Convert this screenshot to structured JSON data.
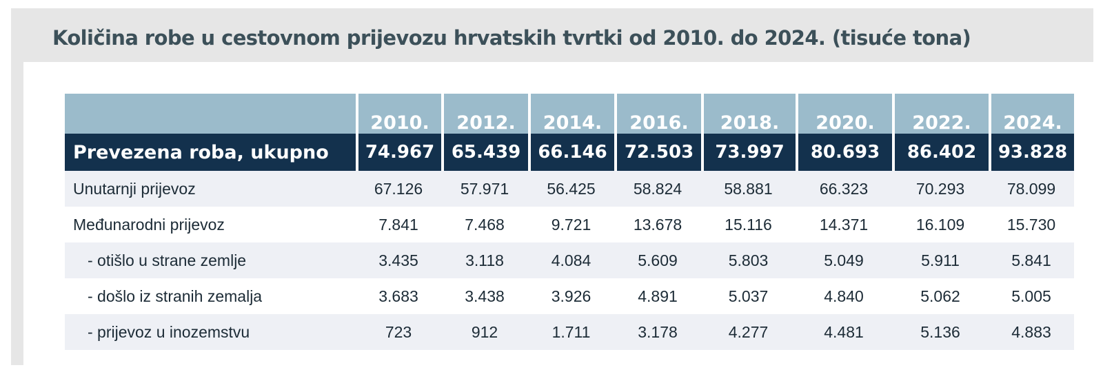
{
  "chart_data": {
    "type": "table",
    "title": "Količina robe u cestovnom prijevozu hrvatskih tvrtki od 2010. do 2024. (tisuće tona)",
    "columns": [
      "2010.",
      "2012.",
      "2014.",
      "2016.",
      "2018.",
      "2020.",
      "2022.",
      "2024."
    ],
    "total": {
      "label": "Prevezena roba, ukupno",
      "values": [
        "74.967",
        "65.439",
        "66.146",
        "72.503",
        "73.997",
        "80.693",
        "86.402",
        "93.828"
      ]
    },
    "rows": [
      {
        "label": "Unutarnji prijevoz",
        "values": [
          "67.126",
          "57.971",
          "56.425",
          "58.824",
          "58.881",
          "66.323",
          "70.293",
          "78.099"
        ]
      },
      {
        "label": "Međunarodni prijevoz",
        "values": [
          "7.841",
          "7.468",
          "9.721",
          "13.678",
          "15.116",
          "14.371",
          "16.109",
          "15.730"
        ]
      },
      {
        "label": "- otišlo u strane zemlje",
        "values": [
          "3.435",
          "3.118",
          "4.084",
          "5.609",
          "5.803",
          "5.049",
          "5.911",
          "5.841"
        ]
      },
      {
        "label": "- došlo iz stranih zemalja",
        "values": [
          "3.683",
          "3.438",
          "3.926",
          "4.891",
          "5.037",
          "4.840",
          "5.062",
          "5.005"
        ]
      },
      {
        "label": "- prijevoz u inozemstvu",
        "values": [
          "723",
          "912",
          "1.711",
          "3.178",
          "4.277",
          "4.481",
          "5.136",
          "4.883"
        ]
      }
    ]
  },
  "colors": {
    "header_bg": "#9bbbcb",
    "total_bg": "#13314d",
    "title_text": "#3c5059",
    "shaded_row_bg": "#eef0f5"
  }
}
